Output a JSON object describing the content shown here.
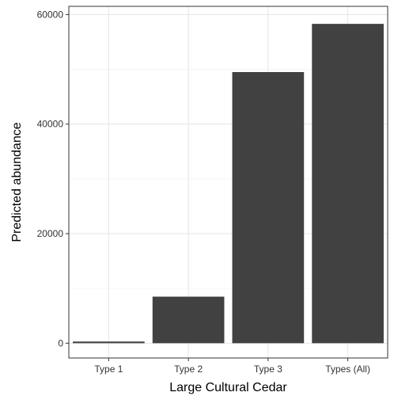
{
  "chart_data": {
    "type": "bar",
    "categories": [
      "Type 1",
      "Type 2",
      "Type 3",
      "Types (All)"
    ],
    "values": [
      300,
      8500,
      49500,
      58300
    ],
    "title": "",
    "xlabel": "Large Cultural Cedar",
    "ylabel": "Predicted abundance",
    "ylim": [
      -2700,
      61500
    ],
    "yticks": [
      0,
      20000,
      40000,
      60000
    ],
    "ytick_labels": [
      "0",
      "20000",
      "40000",
      "60000"
    ],
    "grid": true,
    "bar_color": "#414141",
    "theme": "bw"
  }
}
